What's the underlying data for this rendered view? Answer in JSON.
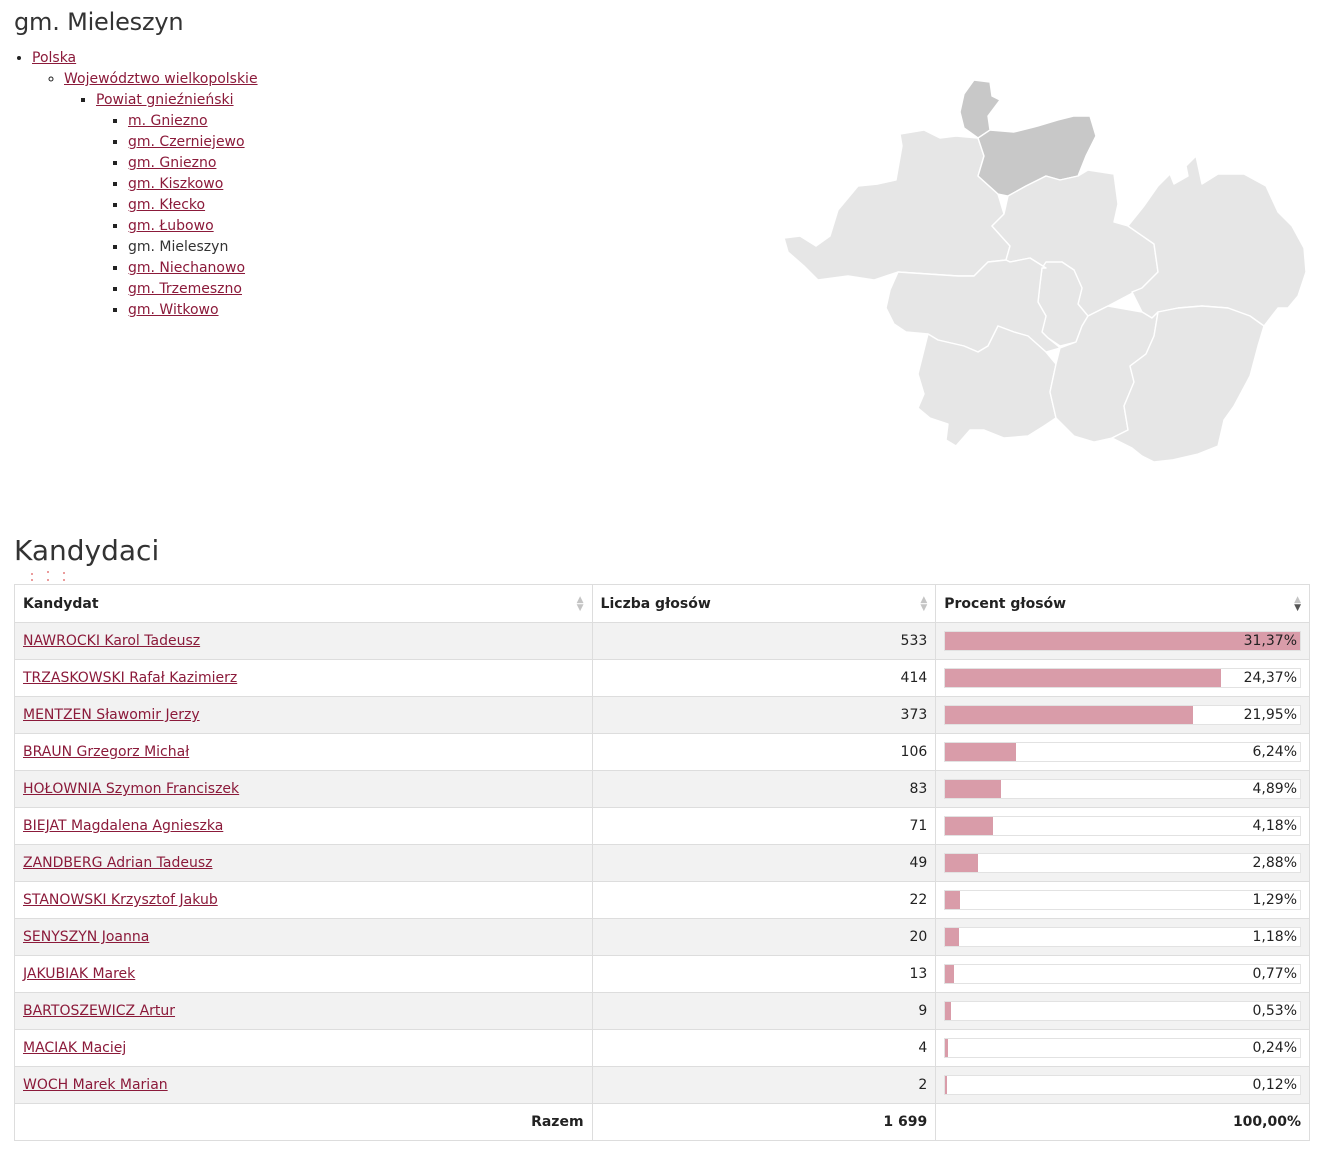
{
  "page": {
    "title": "gm. Mieleszyn"
  },
  "breadcrumb": {
    "country": "Polska",
    "voivodeship": "Województwo wielkopolskie",
    "county": "Powiat gnieźnieński",
    "municipalities": [
      {
        "label": "m. Gniezno",
        "current": false
      },
      {
        "label": "gm. Czerniejewo",
        "current": false
      },
      {
        "label": "gm. Gniezno",
        "current": false
      },
      {
        "label": "gm. Kiszkowo",
        "current": false
      },
      {
        "label": "gm. Kłecko",
        "current": false
      },
      {
        "label": "gm. Łubowo",
        "current": false
      },
      {
        "label": "gm. Mieleszyn",
        "current": true
      },
      {
        "label": "gm. Niechanowo",
        "current": false
      },
      {
        "label": "gm. Trzemeszno",
        "current": false
      },
      {
        "label": "gm. Witkowo",
        "current": false
      }
    ]
  },
  "map": {
    "highlight_color": "#c8c8c8",
    "region_color": "#e6e6e6",
    "border_color": "#ffffff"
  },
  "candidates_section": {
    "title": "Kandydaci",
    "columns": {
      "name": "Kandydat",
      "votes": "Liczba głosów",
      "percent": "Procent głosów"
    },
    "rows": [
      {
        "name": "NAWROCKI Karol Tadeusz",
        "votes": "533",
        "percent": "31,37%",
        "share": 0.3137
      },
      {
        "name": "TRZASKOWSKI Rafał Kazimierz",
        "votes": "414",
        "percent": "24,37%",
        "share": 0.2437
      },
      {
        "name": "MENTZEN Sławomir Jerzy",
        "votes": "373",
        "percent": "21,95%",
        "share": 0.2195
      },
      {
        "name": "BRAUN Grzegorz Michał",
        "votes": "106",
        "percent": "6,24%",
        "share": 0.0624
      },
      {
        "name": "HOŁOWNIA Szymon Franciszek",
        "votes": "83",
        "percent": "4,89%",
        "share": 0.0489
      },
      {
        "name": "BIEJAT Magdalena Agnieszka",
        "votes": "71",
        "percent": "4,18%",
        "share": 0.0418
      },
      {
        "name": "ZANDBERG Adrian Tadeusz",
        "votes": "49",
        "percent": "2,88%",
        "share": 0.0288
      },
      {
        "name": "STANOWSKI Krzysztof Jakub",
        "votes": "22",
        "percent": "1,29%",
        "share": 0.0129
      },
      {
        "name": "SENYSZYN Joanna",
        "votes": "20",
        "percent": "1,18%",
        "share": 0.0118
      },
      {
        "name": "JAKUBIAK Marek",
        "votes": "13",
        "percent": "0,77%",
        "share": 0.0077
      },
      {
        "name": "BARTOSZEWICZ Artur",
        "votes": "9",
        "percent": "0,53%",
        "share": 0.0053
      },
      {
        "name": "MACIAK Maciej",
        "votes": "4",
        "percent": "0,24%",
        "share": 0.0024
      },
      {
        "name": "WOCH Marek Marian",
        "votes": "2",
        "percent": "0,12%",
        "share": 0.0012
      }
    ],
    "total": {
      "label": "Razem",
      "votes": "1 699",
      "percent": "100,00%"
    },
    "bar_color": "#d99ca9",
    "sort": {
      "column": "percent",
      "direction": "descending"
    }
  }
}
